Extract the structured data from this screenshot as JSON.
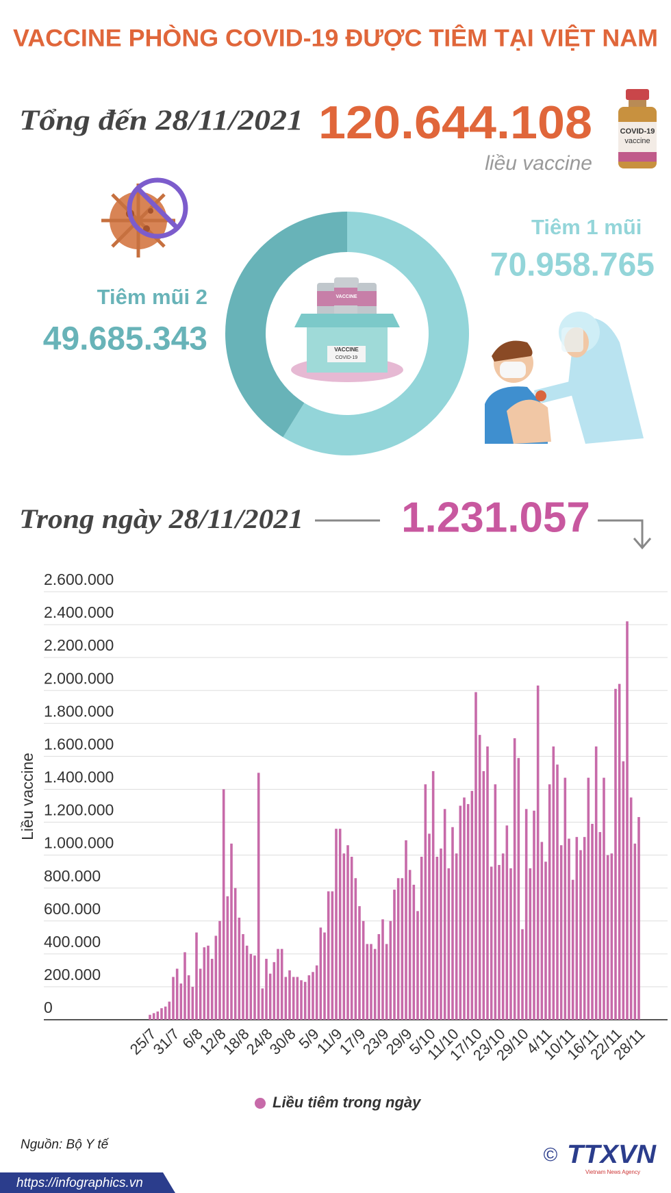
{
  "header": {
    "title": "VACCINE PHÒNG COVID-19 ĐƯỢC TIÊM TẠI VIỆT NAM"
  },
  "total": {
    "label": "Tổng đến 28/11/2021",
    "value": "120.644.108",
    "unit": "liều vaccine"
  },
  "daily": {
    "label": "Trong ngày 28/11/2021",
    "value": "1.231.057"
  },
  "illustrations": {
    "vial_label_1": "COVID-19",
    "vial_label_2": "vaccine",
    "box_label": "VACCINE",
    "box_sublabel": "COVID-19",
    "small_vial_label": "VACCINE"
  },
  "chart_data": [
    {
      "type": "pie",
      "categories": [
        "Tiêm 1 mũi",
        "Tiêm mũi 2"
      ],
      "values": [
        70958765,
        49685343
      ],
      "value_labels": [
        "70.958.765",
        "49.685.343"
      ],
      "colors": [
        "#93d5d9",
        "#68b3b8"
      ]
    },
    {
      "type": "bar",
      "y_label": "Liều vaccine",
      "categories": [
        "25/7",
        null,
        null,
        null,
        null,
        null,
        "31/7",
        null,
        null,
        null,
        null,
        null,
        "6/8",
        null,
        null,
        null,
        null,
        null,
        "12/8",
        null,
        null,
        null,
        null,
        null,
        "18/8",
        null,
        null,
        null,
        null,
        null,
        "24/8",
        null,
        null,
        null,
        null,
        null,
        "30/8",
        null,
        null,
        null,
        null,
        null,
        "5/9",
        null,
        null,
        null,
        null,
        null,
        "11/9",
        null,
        null,
        null,
        null,
        null,
        "17/9",
        null,
        null,
        null,
        null,
        null,
        "23/9",
        null,
        null,
        null,
        null,
        null,
        "29/9",
        null,
        null,
        null,
        null,
        null,
        "5/10",
        null,
        null,
        null,
        null,
        null,
        "11/10",
        null,
        null,
        null,
        null,
        null,
        "17/10",
        null,
        null,
        null,
        null,
        null,
        "23/10",
        null,
        null,
        null,
        null,
        null,
        "29/10",
        null,
        null,
        null,
        null,
        null,
        "4/11",
        null,
        null,
        null,
        null,
        null,
        "10/11",
        null,
        null,
        null,
        null,
        null,
        "16/11",
        null,
        null,
        null,
        null,
        null,
        "22/11",
        null,
        null,
        null,
        null,
        null,
        "28/11"
      ],
      "series": [
        {
          "name": "Liều tiêm trong ngày",
          "color": "#c76aa9",
          "values": [
            30000,
            40000,
            50000,
            70000,
            80000,
            110000,
            260000,
            310000,
            220000,
            410000,
            270000,
            200000,
            530000,
            310000,
            440000,
            450000,
            370000,
            510000,
            600000,
            1400000,
            750000,
            1070000,
            800000,
            620000,
            520000,
            450000,
            400000,
            390000,
            1500000,
            190000,
            370000,
            280000,
            350000,
            430000,
            430000,
            260000,
            300000,
            260000,
            260000,
            240000,
            230000,
            270000,
            290000,
            330000,
            560000,
            530000,
            780000,
            780000,
            1160000,
            1160000,
            1010000,
            1060000,
            990000,
            860000,
            690000,
            600000,
            460000,
            460000,
            430000,
            520000,
            610000,
            460000,
            600000,
            790000,
            860000,
            860000,
            1090000,
            910000,
            820000,
            660000,
            990000,
            1430000,
            1130000,
            1510000,
            990000,
            1040000,
            1280000,
            920000,
            1170000,
            1010000,
            1300000,
            1350000,
            1310000,
            1390000,
            1990000,
            1730000,
            1510000,
            1660000,
            930000,
            1430000,
            940000,
            1010000,
            1180000,
            920000,
            1710000,
            1590000,
            550000,
            1280000,
            920000,
            1270000,
            2030000,
            1080000,
            960000,
            1430000,
            1660000,
            1550000,
            1060000,
            1470000,
            1100000,
            850000,
            1110000,
            1030000,
            1110000,
            1470000,
            1190000,
            1660000,
            1140000,
            1470000,
            1000000,
            1010000,
            2010000,
            2040000,
            1570000,
            2420000,
            1350000,
            1070000,
            1231057
          ]
        }
      ],
      "ylim": [
        0,
        2600000
      ],
      "yticks": [
        0,
        {
          "value": 200000,
          "label": "200.000"
        },
        {
          "value": 400000,
          "label": "400.000"
        },
        {
          "value": 600000,
          "label": "600.000"
        },
        {
          "value": 800000,
          "label": "800.000"
        },
        {
          "value": 1000000,
          "label": "1.000.000"
        },
        {
          "value": 1200000,
          "label": "1.200.000"
        },
        {
          "value": 1400000,
          "label": "1.400.000"
        },
        {
          "value": 1600000,
          "label": "1.600.000"
        },
        {
          "value": 1800000,
          "label": "1.800.000"
        },
        {
          "value": 2000000,
          "label": "2.000.000"
        },
        {
          "value": 2200000,
          "label": "2.200.000"
        },
        {
          "value": 2400000,
          "label": "2.400.000"
        },
        {
          "value": 2600000,
          "label": "2.600.000"
        }
      ],
      "grid": true,
      "legend": "bottom"
    }
  ],
  "footer": {
    "source": "Nguồn: Bộ Y tế",
    "url": "https://infographics.vn",
    "copyright": "©",
    "logo": "TTXVN",
    "logo_sub": "Vietnam News Agency"
  }
}
